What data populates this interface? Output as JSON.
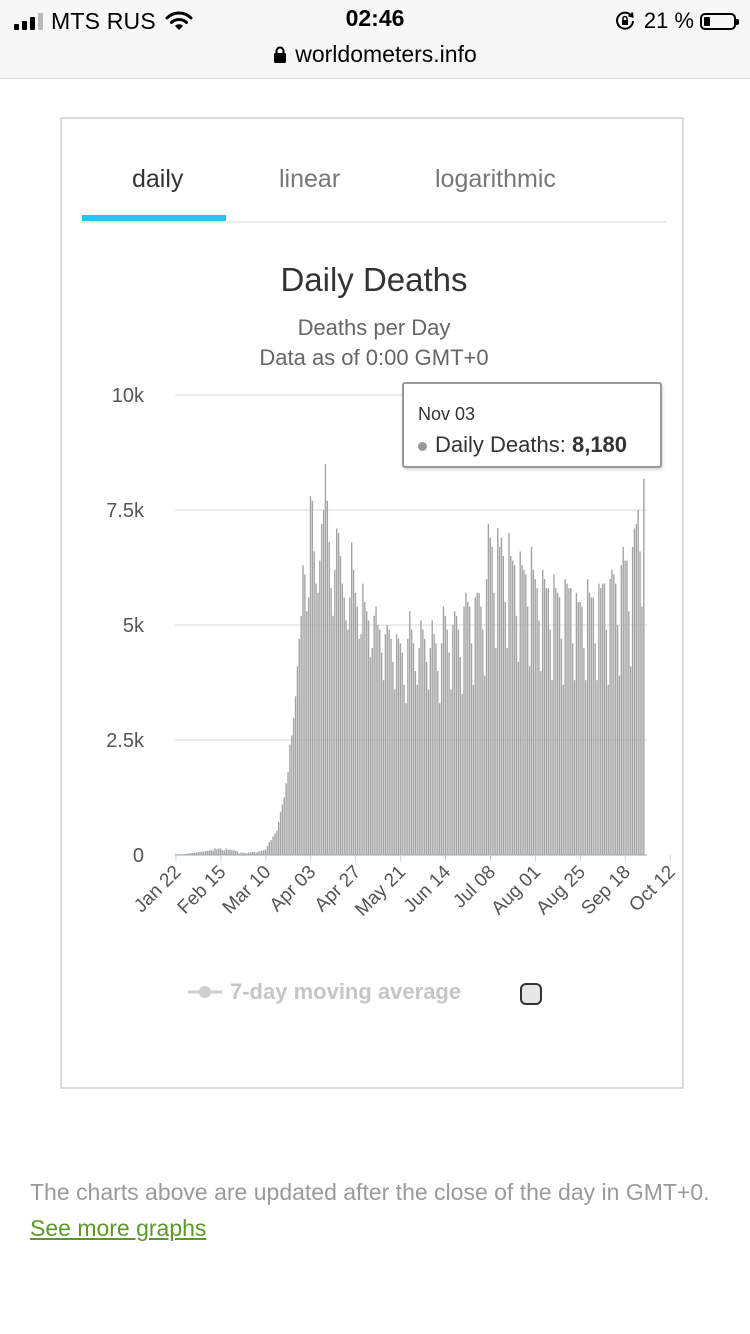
{
  "status_bar": {
    "carrier": "MTS RUS",
    "time": "02:46",
    "battery_percent": "21 %",
    "battery_level": 0.21,
    "signal_bars": 3
  },
  "browser": {
    "url": "worldometers.info"
  },
  "tabs": [
    {
      "label": "daily",
      "active": true
    },
    {
      "label": "linear",
      "active": false
    },
    {
      "label": "logarithmic",
      "active": false
    }
  ],
  "tooltip": {
    "date": "Nov 03",
    "series": "Daily Deaths:",
    "value": "8,180"
  },
  "legend": {
    "label": "7-day moving average",
    "enabled": false
  },
  "footer": {
    "text": "The charts above are updated after the close of the day in GMT+0.",
    "link": "See more graphs"
  },
  "colors": {
    "bar": "#a2a2a2",
    "tab_indicator": "#2bc2f0",
    "link": "#5b9a2a"
  },
  "chart_data": {
    "type": "bar",
    "title": "Daily Deaths",
    "subtitle": [
      "Deaths per Day",
      "Data as of 0:00 GMT+0"
    ],
    "y_ticks": [
      "0",
      "2.5k",
      "5k",
      "7.5k",
      "10k"
    ],
    "ylim": [
      0,
      10000
    ],
    "x_tick_labels": [
      "Jan 22",
      "Feb 15",
      "Mar 10",
      "Apr 03",
      "Apr 27",
      "May 21",
      "Jun 14",
      "Jul 08",
      "Aug 01",
      "Aug 25",
      "Sep 18",
      "Oct 12"
    ],
    "x_start": "Jan 22",
    "x_end": "Nov 03",
    "series": [
      {
        "name": "Daily Deaths",
        "values": [
          17,
          0,
          8,
          16,
          14,
          25,
          26,
          38,
          43,
          46,
          45,
          57,
          64,
          66,
          73,
          73,
          86,
          89,
          97,
          108,
          97,
          146,
          121,
          143,
          142,
          106,
          98,
          139,
          112,
          118,
          109,
          101,
          96,
          79,
          32,
          53,
          51,
          42,
          38,
          52,
          56,
          64,
          70,
          52,
          78,
          82,
          100,
          98,
          117,
          190,
          280,
          320,
          400,
          470,
          530,
          720,
          940,
          1100,
          1250,
          1560,
          1800,
          2400,
          2600,
          2980,
          3450,
          4100,
          4700,
          5200,
          6300,
          6100,
          5300,
          5600,
          7800,
          7700,
          6600,
          5900,
          5700,
          6400,
          7200,
          7500,
          8500,
          7700,
          6800,
          5800,
          5200,
          6200,
          7100,
          7000,
          6500,
          5900,
          5600,
          5100,
          4900,
          5600,
          6800,
          6200,
          5700,
          5400,
          4700,
          4800,
          5900,
          5500,
          5300,
          5100,
          4300,
          4500,
          5200,
          5400,
          5000,
          4900,
          4400,
          3800,
          4800,
          5000,
          4900,
          4700,
          4200,
          3600,
          4800,
          4700,
          4600,
          4400,
          3700,
          3300,
          4700,
          5300,
          4900,
          4600,
          4000,
          3700,
          4500,
          5100,
          4900,
          4700,
          4200,
          3600,
          4500,
          5100,
          4800,
          4600,
          4000,
          3300,
          4600,
          5400,
          5200,
          4900,
          4400,
          3600,
          5000,
          5300,
          5200,
          4900,
          4300,
          3500,
          5400,
          5700,
          5500,
          5400,
          4600,
          3700,
          5600,
          5700,
          5700,
          5400,
          4900,
          3900,
          6000,
          7200,
          6900,
          6700,
          5700,
          4500,
          7100,
          6700,
          6900,
          6500,
          5500,
          4500,
          7000,
          6500,
          6400,
          6300,
          5200,
          4200,
          6600,
          6300,
          6200,
          6100,
          5400,
          4100,
          6700,
          6200,
          6000,
          5800,
          5100,
          4000,
          6200,
          6000,
          5800,
          5800,
          4900,
          3800,
          6100,
          5800,
          5700,
          5600,
          4700,
          3700,
          6000,
          5900,
          5800,
          5800,
          4600,
          3800,
          5700,
          5500,
          5500,
          5400,
          4500,
          3800,
          6000,
          5700,
          5600,
          5600,
          4600,
          3800,
          5900,
          5800,
          5900,
          5900,
          4900,
          3700,
          6000,
          6200,
          6100,
          5900,
          5000,
          3900,
          6300,
          6700,
          6400,
          6400,
          5300,
          4100,
          6700,
          7100,
          7200,
          7500,
          6600,
          5400,
          8180
        ]
      }
    ]
  }
}
